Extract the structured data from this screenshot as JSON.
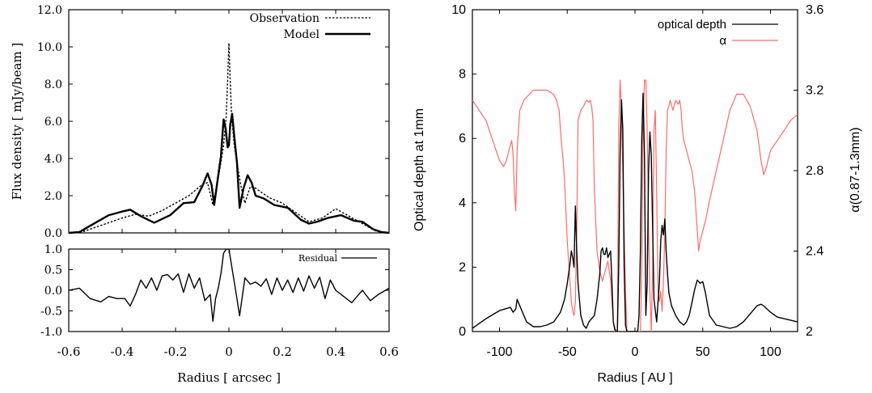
{
  "chart_data": [
    {
      "type": "line",
      "panel": "left-top",
      "xlabel": "",
      "ylabel": "Flux density [ mJy/beam ]",
      "xlim": [
        -0.6,
        0.6
      ],
      "ylim": [
        0,
        12
      ],
      "x_ticks": [],
      "y_ticks": [
        "0.0",
        "2.0",
        "4.0",
        "6.0",
        "8.0",
        "10.0",
        "12.0"
      ],
      "legend_position": "top-right",
      "grid": false,
      "series": [
        {
          "name": "Observation",
          "style": "dotted",
          "color": "#000000",
          "x": [
            -0.6,
            -0.55,
            -0.5,
            -0.45,
            -0.4,
            -0.35,
            -0.3,
            -0.25,
            -0.2,
            -0.15,
            -0.1,
            -0.08,
            -0.06,
            -0.045,
            -0.03,
            -0.02,
            -0.01,
            -0.005,
            0,
            0.005,
            0.01,
            0.02,
            0.03,
            0.045,
            0.06,
            0.08,
            0.1,
            0.15,
            0.2,
            0.25,
            0.3,
            0.35,
            0.4,
            0.45,
            0.5,
            0.55,
            0.6
          ],
          "y": [
            0,
            0.05,
            0.3,
            0.55,
            0.8,
            1.0,
            0.9,
            1.2,
            1.6,
            2.0,
            2.6,
            2.7,
            1.5,
            2.5,
            3.8,
            4.7,
            6.3,
            8.2,
            10.2,
            8.2,
            6.3,
            4.7,
            3.8,
            2.5,
            1.6,
            2.5,
            2.4,
            1.9,
            1.6,
            1.1,
            0.6,
            0.8,
            1.3,
            0.9,
            0.5,
            0.1,
            0
          ]
        },
        {
          "name": "Model",
          "style": "solid",
          "color": "#000000",
          "x": [
            -0.6,
            -0.56,
            -0.5,
            -0.45,
            -0.4,
            -0.37,
            -0.33,
            -0.28,
            -0.22,
            -0.17,
            -0.13,
            -0.1,
            -0.08,
            -0.065,
            -0.055,
            -0.04,
            -0.03,
            -0.02,
            -0.012,
            -0.005,
            0,
            0.005,
            0.012,
            0.02,
            0.03,
            0.04,
            0.055,
            0.07,
            0.085,
            0.1,
            0.13,
            0.17,
            0.22,
            0.27,
            0.3,
            0.33,
            0.37,
            0.42,
            0.47,
            0.5,
            0.54,
            0.57,
            0.6
          ],
          "y": [
            0,
            0.05,
            0.55,
            0.95,
            1.15,
            1.25,
            0.9,
            0.55,
            0.95,
            1.6,
            1.65,
            2.5,
            3.2,
            2.6,
            1.5,
            3.1,
            4.1,
            6.1,
            5.6,
            4.6,
            4.7,
            5.8,
            6.4,
            5.2,
            3.8,
            1.35,
            2.4,
            3.1,
            2.7,
            2.0,
            1.85,
            1.5,
            1.35,
            0.7,
            0.5,
            0.6,
            0.8,
            0.95,
            0.65,
            0.6,
            0.2,
            0.05,
            0
          ]
        }
      ]
    },
    {
      "type": "line",
      "panel": "left-bottom",
      "xlabel": "Radius [ arcsec ]",
      "ylabel": "",
      "xlim": [
        -0.6,
        0.6
      ],
      "ylim": [
        -1.0,
        1.0
      ],
      "x_ticks": [
        "-0.6",
        "-0.4",
        "-0.2",
        "0",
        "0.2",
        "0.4",
        "0.6"
      ],
      "y_ticks": [
        "-1.0",
        "-0.5",
        "0.0",
        "0.5",
        "1.0"
      ],
      "legend_position": "top-right",
      "grid": false,
      "series": [
        {
          "name": "Residual",
          "style": "solid",
          "color": "#000000",
          "x": [
            -0.6,
            -0.56,
            -0.52,
            -0.48,
            -0.45,
            -0.42,
            -0.39,
            -0.37,
            -0.35,
            -0.33,
            -0.31,
            -0.29,
            -0.27,
            -0.25,
            -0.23,
            -0.21,
            -0.19,
            -0.17,
            -0.15,
            -0.13,
            -0.11,
            -0.09,
            -0.07,
            -0.06,
            -0.05,
            -0.04,
            -0.03,
            -0.02,
            -0.01,
            0,
            0.01,
            0.02,
            0.03,
            0.04,
            0.06,
            0.08,
            0.1,
            0.12,
            0.14,
            0.16,
            0.18,
            0.2,
            0.22,
            0.24,
            0.26,
            0.28,
            0.3,
            0.32,
            0.34,
            0.36,
            0.38,
            0.4,
            0.42,
            0.44,
            0.46,
            0.48,
            0.5,
            0.53,
            0.56,
            0.6
          ],
          "y": [
            0.0,
            0.05,
            -0.2,
            -0.28,
            -0.15,
            -0.2,
            -0.2,
            -0.38,
            -0.1,
            0.25,
            0.05,
            0.3,
            0.0,
            0.35,
            0.38,
            0.25,
            0.4,
            -0.05,
            0.4,
            0.05,
            0.3,
            -0.25,
            -0.1,
            -0.75,
            -0.2,
            0.05,
            0.4,
            0.9,
            1.0,
            1.0,
            0.6,
            0.2,
            -0.2,
            -0.62,
            0.3,
            0.15,
            0.2,
            0.1,
            0.28,
            -0.1,
            0.3,
            0.0,
            0.25,
            -0.05,
            0.3,
            -0.02,
            0.35,
            0.05,
            0.32,
            -0.2,
            0.25,
            0.0,
            -0.1,
            -0.2,
            -0.3,
            -0.15,
            0.0,
            -0.25,
            -0.1,
            0.05
          ]
        }
      ]
    },
    {
      "type": "line",
      "panel": "right",
      "xlabel": "Radius [ AU ]",
      "ylabel": "Optical depth at 1mm",
      "y2label": "α(0.87-1.3mm)",
      "xlim": [
        -120,
        120
      ],
      "ylim": [
        0,
        10
      ],
      "y2lim": [
        2,
        3.6
      ],
      "x_ticks": [
        "-100",
        "-50",
        "0",
        "50",
        "100"
      ],
      "y_ticks": [
        "0",
        "2",
        "4",
        "6",
        "8",
        "10"
      ],
      "y2_ticks": [
        "2",
        "2.4",
        "2.8",
        "3.2",
        "3.6"
      ],
      "legend_position": "top-right",
      "grid": false,
      "series": [
        {
          "name": "optical depth",
          "axis": "left",
          "color": "#000000",
          "x": [
            -120,
            -110,
            -100,
            -92,
            -90,
            -88,
            -87,
            -85,
            -80,
            -75,
            -70,
            -65,
            -60,
            -55,
            -52,
            -50,
            -48,
            -47,
            -46,
            -45,
            -44,
            -43,
            -42,
            -41,
            -40,
            -38,
            -36,
            -34,
            -32,
            -30,
            -28,
            -26,
            -25,
            -24,
            -23,
            -22,
            -21,
            -20,
            -18,
            -17,
            -16,
            -15,
            -14,
            -13,
            -12,
            -11,
            -10,
            -9,
            -8,
            -7,
            -6,
            -5,
            -4,
            -3,
            -2,
            0,
            2,
            3,
            4,
            5,
            6,
            7,
            8,
            9,
            10,
            11,
            12,
            14,
            16,
            18,
            19,
            20,
            21,
            22,
            23,
            24,
            25,
            27,
            30,
            33,
            36,
            38,
            40,
            42,
            44,
            46,
            48,
            50,
            52,
            55,
            60,
            65,
            70,
            75,
            80,
            85,
            90,
            93,
            95,
            100,
            105,
            110,
            115,
            120
          ],
          "y": [
            0.1,
            0.4,
            0.65,
            0.75,
            0.6,
            0.7,
            1.0,
            0.8,
            0.3,
            0.15,
            0.15,
            0.2,
            0.3,
            0.6,
            1.0,
            1.5,
            2.1,
            2.5,
            2.3,
            2.0,
            3.9,
            2.5,
            1.5,
            1.0,
            0.5,
            0.2,
            0.1,
            0.3,
            0.4,
            0.5,
            1.0,
            1.8,
            2.5,
            2.6,
            2.4,
            2.4,
            2.6,
            2.3,
            2.5,
            1.5,
            0.3,
            0.1,
            0.0,
            0.0,
            2.0,
            5.5,
            7.2,
            6.3,
            2.0,
            0.2,
            0.0,
            0.0,
            0.0,
            0.0,
            0.0,
            0.0,
            0.0,
            0.5,
            2.5,
            6.0,
            7.4,
            5.5,
            0.5,
            1.5,
            5.0,
            6.2,
            5.5,
            1.0,
            0.3,
            1.5,
            2.8,
            3.3,
            3.0,
            3.5,
            2.5,
            1.8,
            1.2,
            0.8,
            0.5,
            0.3,
            0.2,
            0.3,
            0.5,
            0.9,
            1.3,
            1.6,
            1.5,
            1.55,
            1.2,
            0.5,
            0.2,
            0.15,
            0.1,
            0.15,
            0.3,
            0.55,
            0.8,
            0.85,
            0.8,
            0.6,
            0.45,
            0.4,
            0.35,
            0.3
          ]
        },
        {
          "name": "α",
          "axis": "right",
          "color": "#ff6a6a",
          "x": [
            -120,
            -115,
            -110,
            -105,
            -100,
            -97,
            -95,
            -93,
            -91,
            -90,
            -89,
            -88,
            -87,
            -85,
            -82,
            -78,
            -75,
            -70,
            -65,
            -60,
            -58,
            -56,
            -55,
            -54,
            -53,
            -52,
            -51,
            -50,
            -49,
            -48,
            -47,
            -46,
            -45,
            -44,
            -43,
            -42,
            -40,
            -38,
            -36,
            -34,
            -33,
            -32,
            -31,
            -30,
            -28,
            -26,
            -24,
            -22,
            -20,
            -18,
            -16,
            -15,
            -14,
            -13,
            -12,
            -11,
            -10,
            -9,
            -8,
            -7,
            -6,
            -5,
            -4,
            -2,
            0,
            2,
            3,
            4,
            5,
            6,
            7,
            8,
            9,
            10,
            11,
            12,
            13,
            14,
            15,
            16,
            17,
            18,
            19,
            20,
            21,
            22,
            23,
            24,
            25,
            26,
            28,
            30,
            32,
            33,
            34,
            35,
            36,
            38,
            40,
            42,
            44,
            46,
            47,
            48,
            50,
            52,
            55,
            60,
            65,
            70,
            75,
            80,
            85,
            90,
            93,
            95,
            97,
            100,
            105,
            110,
            115,
            120
          ],
          "y": [
            3.15,
            3.1,
            3.05,
            2.95,
            2.85,
            2.82,
            2.85,
            2.9,
            2.95,
            2.88,
            2.7,
            2.6,
            2.9,
            3.1,
            3.15,
            3.18,
            3.2,
            3.2,
            3.2,
            3.18,
            3.15,
            3.1,
            3.0,
            2.92,
            2.85,
            2.75,
            2.6,
            2.45,
            2.35,
            2.25,
            2.15,
            2.1,
            2.08,
            2.15,
            2.5,
            3.05,
            3.1,
            3.12,
            3.15,
            3.14,
            3.15,
            3.12,
            3.05,
            2.7,
            2.4,
            2.3,
            2.25,
            2.3,
            2.35,
            2.25,
            2.05,
            2.0,
            2.0,
            2.0,
            3.0,
            3.25,
            3.1,
            2.8,
            2.5,
            2.2,
            2.0,
            2.0,
            2.0,
            2.0,
            2.0,
            2.0,
            2.0,
            2.0,
            2.3,
            3.0,
            3.25,
            3.25,
            3.0,
            2.5,
            2.2,
            2.0,
            2.3,
            3.0,
            3.1,
            2.7,
            2.2,
            2.15,
            2.2,
            2.1,
            2.25,
            2.5,
            2.9,
            3.1,
            3.12,
            3.15,
            3.1,
            3.15,
            3.13,
            3.15,
            3.1,
            3.0,
            2.95,
            2.9,
            2.85,
            2.8,
            2.7,
            2.5,
            2.4,
            2.45,
            2.5,
            2.55,
            2.65,
            2.8,
            2.95,
            3.1,
            3.18,
            3.18,
            3.12,
            3.0,
            2.85,
            2.78,
            2.82,
            2.9,
            2.95,
            3.0,
            3.05,
            3.08
          ]
        }
      ]
    }
  ]
}
